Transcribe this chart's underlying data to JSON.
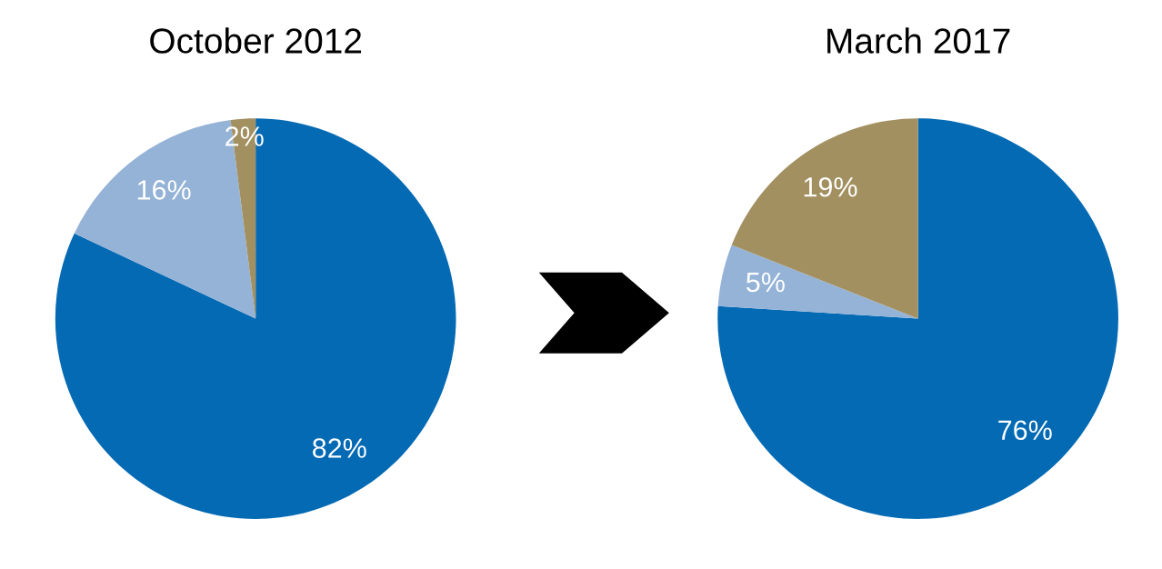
{
  "chart_data": [
    {
      "type": "pie",
      "title": "October 2012",
      "categories": [
        null,
        null,
        null
      ],
      "values": [
        82,
        16,
        2
      ],
      "colors": [
        "#046ab4",
        "#95b3d7",
        "#a39061"
      ],
      "value_labels": [
        "82%",
        "16%",
        "2%"
      ],
      "legend": false
    },
    {
      "type": "pie",
      "title": "March 2017",
      "categories": [
        null,
        null,
        null
      ],
      "values": [
        76,
        5,
        19
      ],
      "colors": [
        "#046ab4",
        "#95b3d7",
        "#a39061"
      ],
      "value_labels": [
        "76%",
        "5%",
        "19%"
      ],
      "legend": false
    }
  ]
}
